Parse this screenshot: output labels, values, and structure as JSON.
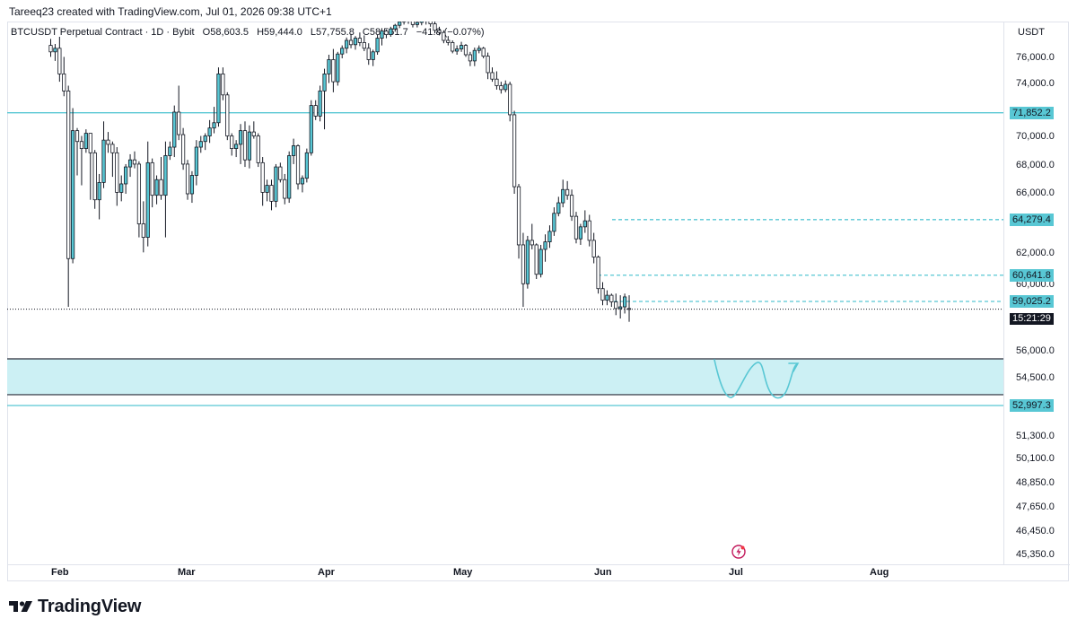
{
  "header": {
    "credit": "Tareeq23 created with TradingView.com, Jul 01, 2026 09:38 UTC+1",
    "symbol": "BTCUSDT Perpetual Contract · 1D · Bybit",
    "open": "O58,603.5",
    "high": "H59,444.0",
    "low": "L57,755.8",
    "close": "C58,561.7",
    "change": "−41.8 (−0.07%)"
  },
  "price_axis": {
    "currency": "USDT",
    "tags": {
      "level_1": "71,852.2",
      "level_2": "64,279.4",
      "level_3": "60,641.8",
      "level_4": "59,025.2",
      "level_5": "52,997.3",
      "countdown": "15:21:29"
    }
  },
  "brand": {
    "name": "TradingView"
  },
  "colors": {
    "accent": "#58c7d4",
    "zone_fill": "#ccf0f4",
    "candle_up": "#58c7d4",
    "candle_down": "#ffffff",
    "candle_border": "#131722"
  },
  "icons": [
    "tradingview-logo-icon",
    "flash-icon"
  ],
  "chart_data": {
    "type": "candlestick",
    "y_ticks": [
      {
        "label": "76,000.0",
        "value": 76000
      },
      {
        "label": "74,000.0",
        "value": 74000
      },
      {
        "label": "70,000.0",
        "value": 70000
      },
      {
        "label": "68,000.0",
        "value": 68000
      },
      {
        "label": "66,000.0",
        "value": 66000
      },
      {
        "label": "62,000.0",
        "value": 62000
      },
      {
        "label": "60,000.0",
        "value": 60000
      },
      {
        "label": "56,000.0",
        "value": 56000
      },
      {
        "label": "54,500.0",
        "value": 54500
      },
      {
        "label": "51,300.0",
        "value": 51300
      },
      {
        "label": "50,100.0",
        "value": 50100
      },
      {
        "label": "48,850.0",
        "value": 48850
      },
      {
        "label": "47,650.0",
        "value": 47650
      },
      {
        "label": "46,450.0",
        "value": 46450
      },
      {
        "label": "45,350.0",
        "value": 45350
      }
    ],
    "x_ticks": [
      "Feb",
      "Mar",
      "Apr",
      "May",
      "Jun",
      "Jul",
      "Aug"
    ],
    "horizontal_levels": [
      {
        "value": 71852.2,
        "style": "solid"
      },
      {
        "value": 64279.4,
        "style": "dashed"
      },
      {
        "value": 60641.8,
        "style": "dashed"
      },
      {
        "value": 59025.2,
        "style": "dashed"
      },
      {
        "value": 52997.3,
        "style": "solid"
      }
    ],
    "last_price": 58561.7,
    "zone": {
      "top": 55600,
      "bottom": 53600
    },
    "candles": [
      [
        77800,
        78700,
        76200,
        76900
      ],
      [
        76900,
        78000,
        75800,
        77400
      ],
      [
        77400,
        79000,
        74200,
        74800
      ],
      [
        74800,
        76200,
        73100,
        73500
      ],
      [
        73500,
        73900,
        58700,
        61700
      ],
      [
        61700,
        72200,
        61400,
        70500
      ],
      [
        70500,
        70700,
        67300,
        69700
      ],
      [
        69700,
        70100,
        66600,
        69200
      ],
      [
        69200,
        70600,
        68900,
        70300
      ],
      [
        70300,
        70300,
        65600,
        68900
      ],
      [
        68900,
        69100,
        65000,
        65600
      ],
      [
        65600,
        67400,
        64300,
        66800
      ],
      [
        66800,
        71200,
        66400,
        69800
      ],
      [
        69800,
        70400,
        68900,
        69500
      ],
      [
        69500,
        69700,
        67200,
        68900
      ],
      [
        68900,
        69300,
        65200,
        66100
      ],
      [
        66100,
        67300,
        65500,
        66700
      ],
      [
        66700,
        68100,
        66000,
        67900
      ],
      [
        67900,
        68800,
        67200,
        68400
      ],
      [
        68400,
        69000,
        67800,
        68100
      ],
      [
        68100,
        68300,
        63100,
        64000
      ],
      [
        64000,
        65500,
        62100,
        63100
      ],
      [
        63100,
        69700,
        62500,
        68200
      ],
      [
        68200,
        68500,
        65100,
        65900
      ],
      [
        65900,
        67300,
        65300,
        67000
      ],
      [
        67000,
        68600,
        65600,
        65900
      ],
      [
        65900,
        69700,
        63100,
        68700
      ],
      [
        68700,
        69700,
        68400,
        69300
      ],
      [
        69300,
        72400,
        68600,
        71900
      ],
      [
        71900,
        73900,
        69800,
        70200
      ],
      [
        70200,
        70700,
        67700,
        68100
      ],
      [
        68100,
        68400,
        65600,
        66000
      ],
      [
        66000,
        67600,
        65400,
        67300
      ],
      [
        67300,
        69800,
        66600,
        69300
      ],
      [
        69300,
        70100,
        68900,
        69700
      ],
      [
        69700,
        70300,
        69100,
        70100
      ],
      [
        70100,
        71300,
        69600,
        70700
      ],
      [
        70700,
        72300,
        70300,
        71100
      ],
      [
        71100,
        75300,
        70800,
        74800
      ],
      [
        74800,
        75300,
        72800,
        73200
      ],
      [
        73200,
        73400,
        69800,
        70100
      ],
      [
        70100,
        70300,
        68700,
        69200
      ],
      [
        69200,
        69800,
        68600,
        69500
      ],
      [
        69500,
        71000,
        68100,
        70500
      ],
      [
        70500,
        71200,
        67900,
        68400
      ],
      [
        68400,
        70900,
        67800,
        70400
      ],
      [
        70400,
        71200,
        69900,
        70100
      ],
      [
        70100,
        70300,
        67900,
        68200
      ],
      [
        68200,
        68600,
        65200,
        66100
      ],
      [
        66100,
        67000,
        65500,
        66600
      ],
      [
        66600,
        67000,
        64900,
        65500
      ],
      [
        65500,
        68100,
        65100,
        67900
      ],
      [
        67900,
        68200,
        66800,
        67000
      ],
      [
        67000,
        67400,
        65300,
        65700
      ],
      [
        65700,
        69000,
        65400,
        68700
      ],
      [
        68700,
        69900,
        68100,
        69400
      ],
      [
        69400,
        69500,
        66300,
        66700
      ],
      [
        66700,
        67300,
        66100,
        67100
      ],
      [
        67100,
        69200,
        66800,
        68900
      ],
      [
        68900,
        72800,
        68700,
        72400
      ],
      [
        72400,
        72800,
        71300,
        71600
      ],
      [
        71600,
        73900,
        71200,
        73500
      ],
      [
        73500,
        75200,
        70600,
        74800
      ],
      [
        74800,
        76500,
        74100,
        75900
      ],
      [
        75900,
        77300,
        73400,
        74200
      ],
      [
        74200,
        76900,
        73900,
        76600
      ],
      [
        76600,
        77800,
        76000,
        77400
      ],
      [
        77400,
        78900,
        76700,
        78500
      ],
      [
        78500,
        79400,
        77400,
        77900
      ],
      [
        77900,
        79100,
        77200,
        78800
      ],
      [
        78800,
        79600,
        77700,
        78200
      ],
      [
        78200,
        79200,
        77000,
        77400
      ],
      [
        77400,
        78100,
        75500,
        75900
      ],
      [
        75900,
        77200,
        75400,
        76900
      ],
      [
        76900,
        79300,
        76500,
        78800
      ],
      [
        78800,
        80200,
        77800,
        79800
      ],
      [
        79800,
        80000,
        78800,
        79300
      ],
      [
        79300,
        80400,
        79000,
        80100
      ],
      [
        80100,
        80800,
        79700,
        80600
      ],
      [
        80600,
        81400,
        80200,
        81100
      ],
      [
        81100,
        81900,
        80700,
        81500
      ],
      [
        81500,
        81800,
        80800,
        81200
      ],
      [
        81200,
        81500,
        80300,
        80700
      ],
      [
        80700,
        81300,
        80300,
        81000
      ],
      [
        81000,
        82100,
        80600,
        81700
      ],
      [
        81700,
        81800,
        80700,
        81300
      ],
      [
        81300,
        81700,
        80400,
        80800
      ],
      [
        80800,
        81200,
        79500,
        79900
      ],
      [
        79900,
        80400,
        79200,
        79600
      ],
      [
        79600,
        79900,
        78100,
        78500
      ],
      [
        78500,
        79100,
        77800,
        78200
      ],
      [
        78200,
        78500,
        76700,
        77000
      ],
      [
        77000,
        77800,
        76500,
        77300
      ],
      [
        77300,
        78300,
        76900,
        77800
      ],
      [
        77800,
        78000,
        76200,
        76500
      ],
      [
        76500,
        76900,
        75400,
        75800
      ],
      [
        75800,
        77500,
        75400,
        77100
      ],
      [
        77100,
        77800,
        76700,
        77400
      ],
      [
        77400,
        77600,
        76000,
        76300
      ],
      [
        76300,
        76800,
        74400,
        74900
      ],
      [
        74900,
        75300,
        74200,
        74400
      ],
      [
        74400,
        75000,
        73600,
        73900
      ],
      [
        73900,
        74200,
        73300,
        73600
      ],
      [
        73600,
        74300,
        73400,
        74000
      ],
      [
        74000,
        74200,
        71200,
        71700
      ],
      [
        71700,
        72000,
        66000,
        66500
      ],
      [
        66500,
        66700,
        61700,
        62600
      ],
      [
        62600,
        63400,
        58700,
        60100
      ],
      [
        60100,
        63200,
        59800,
        62900
      ],
      [
        62900,
        64000,
        62300,
        62600
      ],
      [
        62600,
        62700,
        60400,
        60700
      ],
      [
        60700,
        62600,
        60500,
        62300
      ],
      [
        62300,
        63300,
        61500,
        62800
      ],
      [
        62800,
        63900,
        62400,
        63500
      ],
      [
        63500,
        65100,
        63200,
        64700
      ],
      [
        64700,
        65800,
        64500,
        65400
      ],
      [
        65400,
        67000,
        65100,
        66300
      ],
      [
        66300,
        66900,
        65600,
        65900
      ],
      [
        65900,
        66300,
        64200,
        64500
      ],
      [
        64500,
        64800,
        62700,
        63000
      ],
      [
        63000,
        64000,
        62600,
        63800
      ],
      [
        63800,
        64900,
        63400,
        64200
      ],
      [
        64200,
        64600,
        62500,
        62900
      ],
      [
        62900,
        63400,
        61400,
        61800
      ],
      [
        61800,
        61900,
        59500,
        59800
      ],
      [
        59800,
        60200,
        58800,
        59100
      ],
      [
        59100,
        59700,
        58800,
        59400
      ],
      [
        59400,
        59500,
        58700,
        59000
      ],
      [
        59000,
        59500,
        58200,
        58600
      ],
      [
        58600,
        59400,
        58000,
        58700
      ],
      [
        58700,
        59500,
        58300,
        59300
      ],
      [
        58600,
        59400,
        57800,
        58560
      ]
    ]
  }
}
